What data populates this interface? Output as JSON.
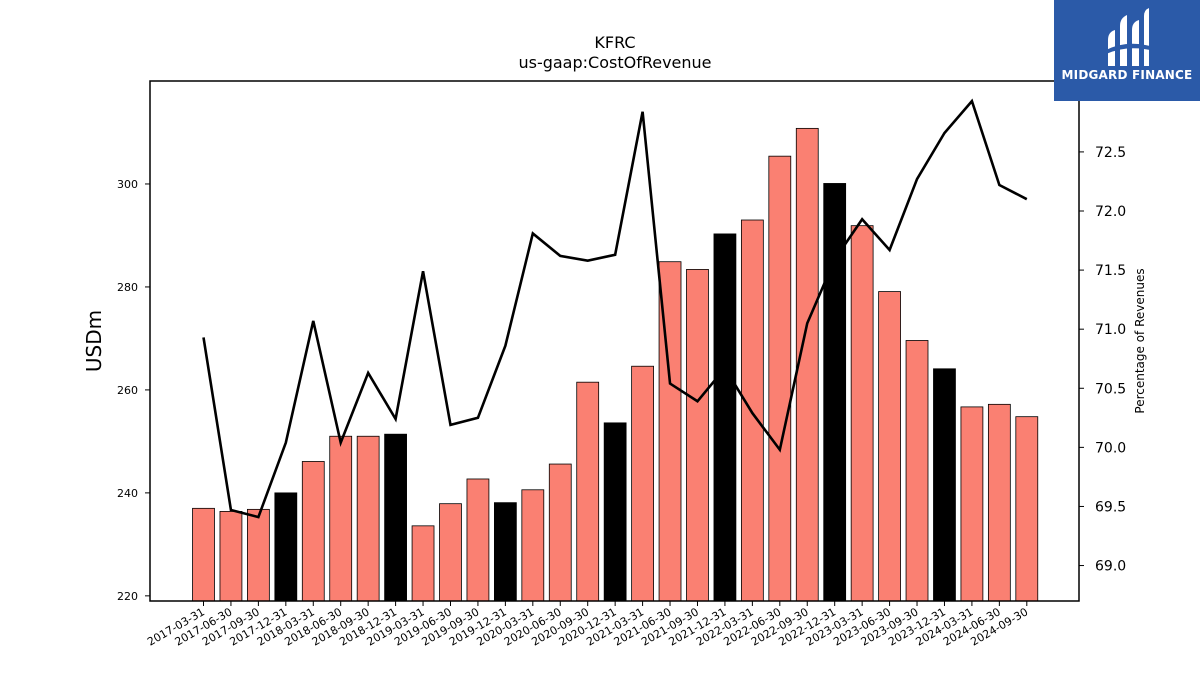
{
  "brand": {
    "name": "MIDGARD FINANCE",
    "bg": "#2b5aa8"
  },
  "chart_data": {
    "type": "bar",
    "title": "KFRC",
    "subtitle": "us-gaap:CostOfRevenue",
    "ylabel": "USDm",
    "y2label": "Percentage of Revenues",
    "ylim": [
      219,
      320
    ],
    "y2lim": [
      68.7,
      73.1
    ],
    "yticks": [
      220,
      240,
      260,
      280,
      300
    ],
    "y2ticks": [
      69.0,
      69.5,
      70.0,
      70.5,
      71.0,
      71.5,
      72.0,
      72.5
    ],
    "categories": [
      "2017-03-31",
      "2017-06-30",
      "2017-09-30",
      "2017-12-31",
      "2018-03-31",
      "2018-06-30",
      "2018-09-30",
      "2018-12-31",
      "2019-03-31",
      "2019-06-30",
      "2019-09-30",
      "2019-12-31",
      "2020-03-31",
      "2020-06-30",
      "2020-09-30",
      "2020-12-31",
      "2021-03-31",
      "2021-06-30",
      "2021-09-30",
      "2021-12-31",
      "2022-03-31",
      "2022-06-30",
      "2022-09-30",
      "2022-12-31",
      "2023-03-31",
      "2023-06-30",
      "2023-09-30",
      "2023-12-31",
      "2024-03-31",
      "2024-06-30",
      "2024-09-30"
    ],
    "series": [
      {
        "type": "bar",
        "values": [
          237.0,
          236.4,
          236.8,
          240.0,
          246.1,
          251.0,
          251.0,
          251.4,
          233.6,
          237.9,
          242.7,
          238.1,
          240.6,
          245.6,
          261.5,
          253.6,
          264.6,
          284.9,
          283.4,
          290.3,
          293.0,
          305.4,
          310.8,
          300.1,
          291.9,
          279.1,
          269.6,
          264.1,
          256.7,
          257.2,
          254.8
        ],
        "highlight": [
          false,
          false,
          false,
          true,
          false,
          false,
          false,
          true,
          false,
          false,
          false,
          true,
          false,
          false,
          false,
          true,
          false,
          false,
          false,
          true,
          false,
          false,
          false,
          true,
          false,
          false,
          false,
          true,
          false,
          false,
          false
        ]
      },
      {
        "type": "line",
        "axis": "right",
        "values": [
          70.93,
          69.47,
          69.41,
          70.04,
          71.07,
          70.04,
          70.63,
          70.24,
          71.49,
          70.19,
          70.25,
          70.86,
          71.81,
          71.62,
          71.58,
          71.63,
          72.84,
          70.54,
          70.39,
          70.67,
          70.29,
          69.98,
          71.05,
          71.59,
          71.93,
          71.67,
          72.27,
          72.66,
          72.93,
          72.22,
          72.1
        ]
      }
    ],
    "colors": {
      "bar": "#fa8072",
      "bar_highlight": "#000000",
      "line": "#000000"
    }
  }
}
